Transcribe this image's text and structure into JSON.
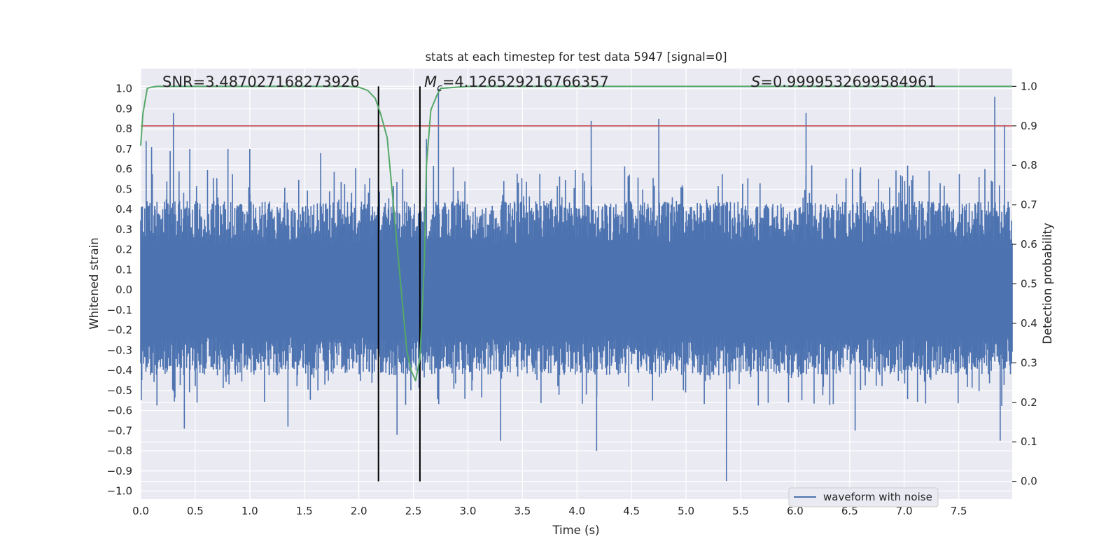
{
  "chart_data": {
    "type": "line",
    "title": "stats at each timestep for test data 5947 [signal=0]",
    "xlabel": "Time (s)",
    "ylabel": "Whitened strain",
    "y2label": "Detection probability",
    "xlim": [
      0.0,
      7.99
    ],
    "ylim": [
      -1.04,
      1.1
    ],
    "y2lim": [
      -0.045,
      1.045
    ],
    "xticks": [
      0.0,
      0.5,
      1.0,
      1.5,
      2.0,
      2.5,
      3.0,
      3.5,
      4.0,
      4.5,
      5.0,
      5.5,
      6.0,
      6.5,
      7.0,
      7.5
    ],
    "xtick_labels": [
      "0.0",
      "0.5",
      "1.0",
      "1.5",
      "2.0",
      "2.5",
      "3.0",
      "3.5",
      "4.0",
      "4.5",
      "5.0",
      "5.5",
      "6.0",
      "6.5",
      "7.0",
      "7.5"
    ],
    "yticks": [
      1.0,
      0.9,
      0.8,
      0.7,
      0.6,
      0.5,
      0.4,
      0.3,
      0.2,
      0.1,
      0.0,
      -0.1,
      -0.2,
      -0.3,
      -0.4,
      -0.5,
      -0.6,
      -0.7,
      -0.8,
      -0.9,
      -1.0
    ],
    "ytick_labels": [
      "1.0",
      "0.9",
      "0.8",
      "0.7",
      "0.6",
      "0.5",
      "0.4",
      "0.3",
      "0.2",
      "0.1",
      "0.0",
      "−0.1",
      "−0.2",
      "−0.3",
      "−0.4",
      "−0.5",
      "−0.6",
      "−0.7",
      "−0.8",
      "−0.9",
      "−1.0"
    ],
    "y2ticks": [
      1.0,
      0.9,
      0.8,
      0.7,
      0.6,
      0.5,
      0.4,
      0.3,
      0.2,
      0.1,
      0.0
    ],
    "y2tick_labels": [
      "1.0",
      "0.9",
      "0.8",
      "0.7",
      "0.6",
      "0.5",
      "0.4",
      "0.3",
      "0.2",
      "0.1",
      "0.0"
    ],
    "grid": true,
    "legend": {
      "entries": [
        "waveform with noise"
      ],
      "location": "lower right"
    },
    "series": [
      {
        "name": "waveform with noise",
        "axis": "left",
        "color": "#4c72b0",
        "kind": "noise",
        "envelope": {
          "typical_upper": 0.4,
          "typical_lower": -0.38,
          "core": 0.23
        },
        "peaks": [
          {
            "t": 0.05,
            "v": 0.74
          },
          {
            "t": 0.1,
            "v": 0.71
          },
          {
            "t": 0.3,
            "v": 0.88
          },
          {
            "t": 0.27,
            "v": 0.69
          },
          {
            "t": 0.45,
            "v": 0.7
          },
          {
            "t": 0.8,
            "v": 0.7
          },
          {
            "t": 1.0,
            "v": 0.7
          },
          {
            "t": 1.65,
            "v": 0.68
          },
          {
            "t": 2.73,
            "v": 1.0
          },
          {
            "t": 2.62,
            "v": 0.75
          },
          {
            "t": 4.13,
            "v": 0.84
          },
          {
            "t": 4.75,
            "v": 0.85
          },
          {
            "t": 6.1,
            "v": 0.88
          },
          {
            "t": 7.83,
            "v": 0.96
          },
          {
            "t": 7.92,
            "v": 0.82
          },
          {
            "t": 0.4,
            "v": -0.69
          },
          {
            "t": 1.35,
            "v": -0.68
          },
          {
            "t": 2.35,
            "v": -0.72
          },
          {
            "t": 3.3,
            "v": -0.75
          },
          {
            "t": 4.18,
            "v": -0.8
          },
          {
            "t": 5.37,
            "v": -0.95
          },
          {
            "t": 6.55,
            "v": -0.7
          },
          {
            "t": 7.88,
            "v": -0.75
          }
        ]
      },
      {
        "name": "detection probability",
        "axis": "right",
        "color": "#55a868",
        "x": [
          0.0,
          0.02,
          0.06,
          0.1,
          0.15,
          0.25,
          0.5,
          1.0,
          1.5,
          1.9,
          2.0,
          2.08,
          2.15,
          2.2,
          2.26,
          2.3,
          2.35,
          2.4,
          2.44,
          2.48,
          2.52,
          2.56,
          2.6,
          2.62,
          2.66,
          2.72,
          2.75,
          3.0,
          4.0,
          4.5,
          5.0,
          6.0,
          7.0,
          7.99
        ],
        "y": [
          0.85,
          0.93,
          0.995,
          0.998,
          1.0,
          1.0,
          1.0,
          1.0,
          1.0,
          1.0,
          0.998,
          0.99,
          0.97,
          0.93,
          0.87,
          0.75,
          0.6,
          0.45,
          0.33,
          0.28,
          0.255,
          0.31,
          0.55,
          0.8,
          0.94,
          0.98,
          0.995,
          1.0,
          1.0,
          1.0,
          1.0,
          1.0,
          1.0,
          1.0
        ]
      },
      {
        "name": "threshold",
        "axis": "right",
        "color": "#c44e52",
        "x": [
          0.0,
          7.99
        ],
        "y": [
          0.9,
          0.9
        ]
      }
    ],
    "vlines": [
      {
        "x": 2.18,
        "y2_from": 0.0,
        "y2_to": 1.0,
        "color": "#000000"
      },
      {
        "x": 2.56,
        "y2_from": 0.0,
        "y2_to": 1.0,
        "color": "#000000"
      }
    ],
    "annotations": [
      {
        "text": "SNR=3.487027168273926"
      },
      {
        "prefix": "M",
        "subscript": "c",
        "text": "=4.126529216766357"
      },
      {
        "prefix": "S",
        "text": "=0.9999532699584961"
      }
    ]
  }
}
